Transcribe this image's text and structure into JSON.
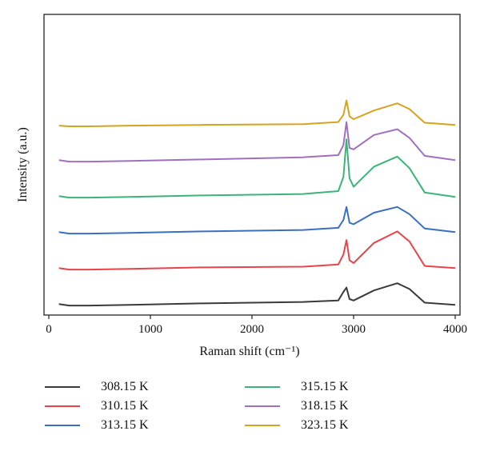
{
  "chart_data": {
    "type": "line",
    "xlabel": "Raman shift (cm⁻¹)",
    "ylabel": "Intensity (a.u.)",
    "xlim": [
      0,
      4000
    ],
    "xticks": [
      0,
      1000,
      2000,
      3000,
      4000
    ],
    "x_tick_labels": [
      "0",
      "1000",
      "2000",
      "3000",
      "4000"
    ],
    "y_ticks_shown": false,
    "legend_placement": "below",
    "grid": false,
    "series": [
      {
        "name": "308.15 K",
        "color": "#3a3a3a",
        "offset": 0,
        "values": [
          [
            100,
            3
          ],
          [
            200,
            1
          ],
          [
            400,
            1
          ],
          [
            800,
            2
          ],
          [
            1500,
            4
          ],
          [
            2500,
            6
          ],
          [
            2850,
            8
          ],
          [
            2900,
            20
          ],
          [
            2930,
            26
          ],
          [
            2960,
            10
          ],
          [
            3000,
            8
          ],
          [
            3200,
            22
          ],
          [
            3430,
            32
          ],
          [
            3550,
            24
          ],
          [
            3700,
            5
          ],
          [
            4000,
            2
          ]
        ]
      },
      {
        "name": "310.15 K",
        "color": "#e8434a",
        "offset": 1,
        "values": [
          [
            100,
            3
          ],
          [
            200,
            1
          ],
          [
            400,
            1
          ],
          [
            800,
            2
          ],
          [
            1500,
            4
          ],
          [
            2500,
            5
          ],
          [
            2850,
            8
          ],
          [
            2900,
            22
          ],
          [
            2930,
            42
          ],
          [
            2960,
            14
          ],
          [
            3000,
            10
          ],
          [
            3200,
            38
          ],
          [
            3430,
            54
          ],
          [
            3550,
            40
          ],
          [
            3700,
            6
          ],
          [
            4000,
            3
          ]
        ]
      },
      {
        "name": "313.15 K",
        "color": "#3a6fc0",
        "offset": 2,
        "values": [
          [
            100,
            3
          ],
          [
            200,
            1
          ],
          [
            400,
            1
          ],
          [
            800,
            2
          ],
          [
            1500,
            4
          ],
          [
            2500,
            6
          ],
          [
            2850,
            9
          ],
          [
            2900,
            20
          ],
          [
            2930,
            38
          ],
          [
            2960,
            16
          ],
          [
            3000,
            14
          ],
          [
            3200,
            30
          ],
          [
            3430,
            38
          ],
          [
            3550,
            28
          ],
          [
            3700,
            8
          ],
          [
            4000,
            3
          ]
        ]
      },
      {
        "name": "315.15 K",
        "color": "#3db477",
        "offset": 3,
        "values": [
          [
            100,
            3
          ],
          [
            200,
            1
          ],
          [
            400,
            1
          ],
          [
            800,
            2
          ],
          [
            1500,
            4
          ],
          [
            2500,
            6
          ],
          [
            2850,
            10
          ],
          [
            2900,
            30
          ],
          [
            2930,
            82
          ],
          [
            2960,
            28
          ],
          [
            3000,
            16
          ],
          [
            3200,
            44
          ],
          [
            3430,
            58
          ],
          [
            3550,
            42
          ],
          [
            3700,
            8
          ],
          [
            4000,
            2
          ]
        ]
      },
      {
        "name": "318.15 K",
        "color": "#a070c0",
        "offset": 4,
        "values": [
          [
            100,
            3
          ],
          [
            200,
            1
          ],
          [
            400,
            1
          ],
          [
            800,
            2
          ],
          [
            1500,
            4
          ],
          [
            2500,
            7
          ],
          [
            2850,
            10
          ],
          [
            2900,
            24
          ],
          [
            2930,
            56
          ],
          [
            2960,
            20
          ],
          [
            3000,
            18
          ],
          [
            3200,
            38
          ],
          [
            3430,
            46
          ],
          [
            3550,
            34
          ],
          [
            3700,
            9
          ],
          [
            4000,
            3
          ]
        ]
      },
      {
        "name": "323.15 K",
        "color": "#d6a31e",
        "offset": 5,
        "values": [
          [
            100,
            1
          ],
          [
            200,
            0
          ],
          [
            400,
            0
          ],
          [
            800,
            1
          ],
          [
            1500,
            2
          ],
          [
            2500,
            3
          ],
          [
            2850,
            6
          ],
          [
            2900,
            16
          ],
          [
            2930,
            36
          ],
          [
            2960,
            14
          ],
          [
            3000,
            10
          ],
          [
            3200,
            22
          ],
          [
            3430,
            32
          ],
          [
            3550,
            24
          ],
          [
            3700,
            5
          ],
          [
            4000,
            2
          ]
        ]
      }
    ]
  }
}
